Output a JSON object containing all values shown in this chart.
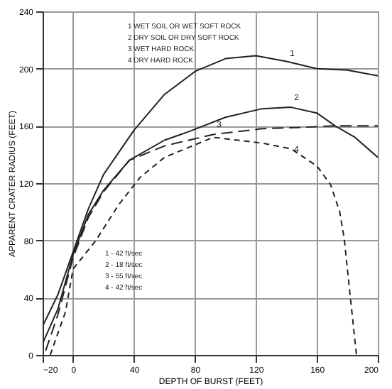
{
  "chart_data": {
    "type": "line",
    "xlabel": "DEPTH OF BURST (FEET)",
    "ylabel": "APPARENT CRATER RADIUS (FEET)",
    "xlim": [
      -20,
      200
    ],
    "ylim": [
      0,
      240
    ],
    "xticks": [
      -20,
      0,
      40,
      80,
      120,
      160,
      200
    ],
    "yticks": [
      0,
      40,
      80,
      120,
      160,
      200,
      240
    ],
    "grid": true,
    "marker": "none",
    "series": [
      {
        "color": "#222222",
        "line_style": "solid",
        "x": [
          -20,
          -10,
          0,
          10,
          20,
          40,
          60,
          80,
          100,
          120,
          140,
          160,
          180,
          200
        ],
        "values": [
          20,
          42,
          72,
          102,
          126,
          157,
          182,
          198,
          207,
          209,
          205,
          200,
          199,
          195
        ]
      },
      {
        "color": "#222222",
        "line_style": "solid",
        "x": [
          -20,
          -10,
          0,
          10,
          20,
          37,
          60,
          76,
          100,
          124,
          143,
          160,
          172,
          185,
          200
        ],
        "values": [
          8,
          32,
          70,
          98,
          115,
          136,
          150,
          156,
          166,
          172,
          173,
          169,
          160,
          152,
          138
        ]
      },
      {
        "color": "#222222",
        "line_style": "dashed",
        "x": [
          -18,
          -10,
          0,
          10,
          20,
          37,
          60,
          92,
          124,
          150,
          172,
          200
        ],
        "values": [
          3,
          28,
          68,
          96,
          114,
          136,
          146,
          154,
          158,
          159,
          160,
          160
        ]
      },
      {
        "color": "#222222",
        "line_style": "dotted",
        "x": [
          -15,
          -5,
          0,
          15,
          30,
          44,
          60,
          92,
          124,
          143,
          160,
          169,
          175,
          178,
          182,
          186
        ],
        "values": [
          0,
          30,
          60,
          80,
          105,
          124,
          138,
          152,
          148,
          144,
          132,
          119,
          100,
          81,
          40,
          0
        ]
      }
    ],
    "annotations": [
      "1 WET SOIL OR WET SOFT ROCK",
      "2 DRY SOIL OR DRY SOFT ROCK",
      "3 WET HARD ROCK",
      "4 DRY HARD ROCK",
      "1 - 42 ft/sec",
      "2 - 18 ft/sec",
      "3 - 55 ft/sec",
      "4 - 42 ft/sec",
      {
        "text": "1",
        "x": 140,
        "y": 207
      },
      {
        "text": "2",
        "x": 143,
        "y": 176
      },
      {
        "text": "3",
        "x": 92,
        "y": 157
      },
      {
        "text": "4",
        "x": 143,
        "y": 140
      }
    ]
  }
}
